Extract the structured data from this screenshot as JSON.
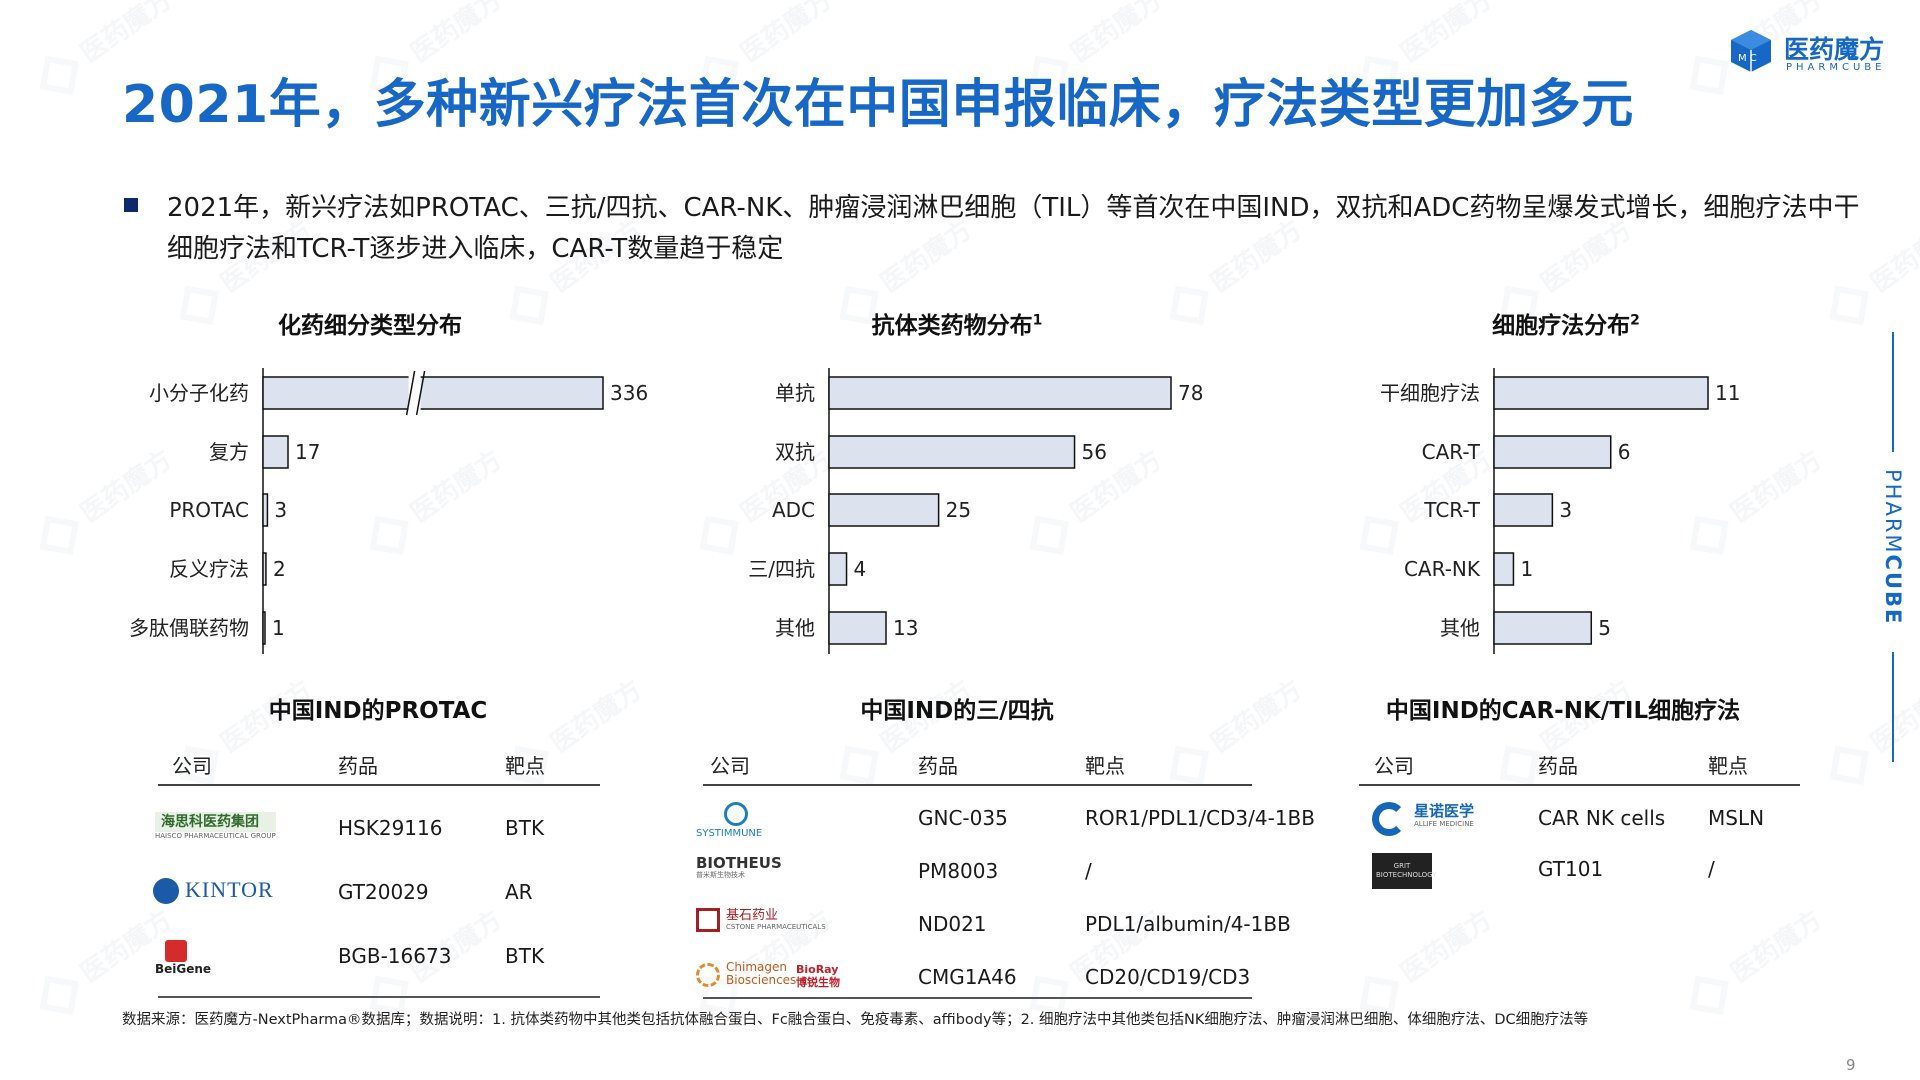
{
  "title": "2021年，多种新兴疗法首次在中国申报临床，疗法类型更加多元",
  "logo": {
    "cn": "医药魔方",
    "en": "PHARMCUBE",
    "box_text": "M C"
  },
  "side_label": {
    "light": "PHARM",
    "bold": "CUBE"
  },
  "watermark": "医药魔方",
  "bullet": "2021年，新兴疗法如PROTAC、三抗/四抗、CAR-NK、肿瘤浸润淋巴细胞（TIL）等首次在中国IND，双抗和ADC药物呈爆发式增长，细胞疗法中干细胞疗法和TCR-T逐步进入临床，CAR-T数量趋于稳定",
  "chart_data": [
    {
      "type": "bar",
      "orientation": "horizontal",
      "title": "化药细分类型分布",
      "title_sup": "",
      "categories": [
        "小分子化药",
        "复方",
        "PROTAC",
        "反义疗法",
        "多肽偶联药物"
      ],
      "values": [
        336,
        17,
        3,
        2,
        1
      ],
      "axis_break": true,
      "bar_color": "#dde3ee"
    },
    {
      "type": "bar",
      "orientation": "horizontal",
      "title": "抗体类药物分布",
      "title_sup": "1",
      "categories": [
        "单抗",
        "双抗",
        "ADC",
        "三/四抗",
        "其他"
      ],
      "values": [
        78,
        56,
        25,
        4,
        13
      ],
      "bar_color": "#dde3ee"
    },
    {
      "type": "bar",
      "orientation": "horizontal",
      "title": "细胞疗法分布",
      "title_sup": "2",
      "categories": [
        "干细胞疗法",
        "CAR-T",
        "TCR-T",
        "CAR-NK",
        "其他"
      ],
      "values": [
        11,
        6,
        3,
        1,
        5
      ],
      "bar_color": "#dde3ee"
    }
  ],
  "tables": [
    {
      "title": "中国IND的PROTAC",
      "headers": [
        "公司",
        "药品",
        "靶点"
      ],
      "rows": [
        {
          "company_logo": "海思科医药集团",
          "company_sub": "HAISCO PHARMACEUTICAL GROUP",
          "drug": "HSK29116",
          "target": "BTK"
        },
        {
          "company_logo": "KINTOR",
          "company_sub": "",
          "drug": "GT20029",
          "target": "AR"
        },
        {
          "company_logo": "BeiGene",
          "company_sub": "",
          "drug": "BGB-16673",
          "target": "BTK"
        }
      ]
    },
    {
      "title": "中国IND的三/四抗",
      "headers": [
        "公司",
        "药品",
        "靶点"
      ],
      "rows": [
        {
          "company_logo": "SYSTIMMUNE",
          "company_sub": "",
          "drug": "GNC-035",
          "target": "ROR1/PDL1/CD3/4-1BB"
        },
        {
          "company_logo": "BIOTHEUS",
          "company_sub": "普米斯生物技术",
          "drug": "PM8003",
          "target": "/"
        },
        {
          "company_logo": "基石药业",
          "company_sub": "CSTONE PHARMACEUTICALS",
          "drug": "ND021",
          "target": "PDL1/albumin/4-1BB"
        },
        {
          "company_logo": "Chimagen Biosciences",
          "company_sub": "BioRay 博锐生物",
          "drug": "CMG1A46",
          "target": "CD20/CD19/CD3"
        }
      ]
    },
    {
      "title": "中国IND的CAR-NK/TIL细胞疗法",
      "headers": [
        "公司",
        "药品",
        "靶点"
      ],
      "rows": [
        {
          "company_logo": "星诺医学",
          "company_sub": "ALLIFE MEDICINE",
          "drug": "CAR NK cells",
          "target": "MSLN"
        },
        {
          "company_logo": "GRIT BIOTECHNOLOGY",
          "company_sub": "",
          "drug": "GT101",
          "target": "/"
        }
      ]
    }
  ],
  "footnote": "数据来源：医药魔方-NextPharma®数据库；数据说明：1. 抗体类药物中其他类包括抗体融合蛋白、Fc融合蛋白、免疫毒素、affibody等；2. 细胞疗法中其他类包括NK细胞疗法、肿瘤浸润淋巴细胞、体细胞疗法、DC细胞疗法等",
  "page_number": "9",
  "colors": {
    "accent": "#1667c6",
    "bullet": "#0e2a6e",
    "bar_fill": "#dde3ee",
    "bar_stroke": "#111111"
  }
}
